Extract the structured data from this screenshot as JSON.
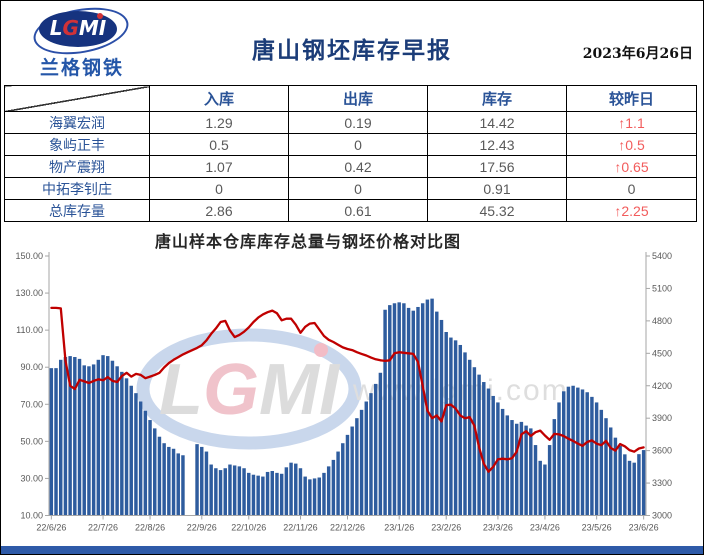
{
  "header": {
    "logo_text": "LGMI",
    "logo_subtext": "兰格钢铁",
    "title": "唐山钢坯库存早报",
    "date": "2023年6月26日"
  },
  "table": {
    "columns": [
      "入库",
      "出库",
      "库存",
      "较昨日"
    ],
    "rows": [
      {
        "name": "海翼宏润",
        "in": "1.29",
        "out": "0.19",
        "stock": "14.42",
        "change": "1.1",
        "up": true
      },
      {
        "name": "象屿正丰",
        "in": "0.5",
        "out": "0",
        "stock": "12.43",
        "change": "0.5",
        "up": true
      },
      {
        "name": "物产震翔",
        "in": "1.07",
        "out": "0.42",
        "stock": "17.56",
        "change": "0.65",
        "up": true
      },
      {
        "name": "中拓李钊庄",
        "in": "0",
        "out": "0",
        "stock": "0.91",
        "change": "0",
        "up": false
      },
      {
        "name": "总库存量",
        "in": "2.86",
        "out": "0.61",
        "stock": "45.32",
        "change": "2.25",
        "up": true
      }
    ],
    "up_arrow": "↑"
  },
  "chart_data": {
    "type": [
      "bar",
      "line"
    ],
    "title": "唐山样本仓库库存总量与钢坯价格对比图",
    "x_tick_labels": [
      "22/6/26",
      "22/7/26",
      "22/8/26",
      "22/9/26",
      "22/10/26",
      "22/11/26",
      "22/12/26",
      "23/1/26",
      "23/2/26",
      "23/3/26",
      "23/4/26",
      "23/5/26",
      "23/6/26"
    ],
    "left_axis": {
      "min": 10,
      "max": 150,
      "step": 20,
      "decimals": 2
    },
    "right_axis": {
      "min": 3000,
      "max": 5400,
      "step": 300,
      "decimals": 0
    },
    "grid": false,
    "legend": "none",
    "colors": {
      "bar": "#2e5c9e",
      "line": "#c00000",
      "axis": "#a6a6a6",
      "tick_text": "#595959"
    },
    "watermark": {
      "logo_text": "LGMI",
      "url_text": "www.lgmi.com"
    },
    "series": [
      {
        "name": "库存总量",
        "type": "bar",
        "axis": "left",
        "values": [
          89.5,
          89.5,
          94,
          95.5,
          96,
          95.5,
          94.5,
          91,
          90.5,
          91.5,
          94,
          96.5,
          96,
          93.5,
          90.5,
          87.5,
          84,
          80,
          76,
          71.5,
          66.5,
          61.5,
          57,
          52.5,
          49,
          47,
          46,
          43.5,
          42.5,
          null,
          null,
          48.5,
          47,
          44.5,
          37.5,
          35.5,
          34.5,
          35.5,
          37.5,
          37,
          36.5,
          35.5,
          33,
          32,
          31.5,
          31,
          33.5,
          34,
          33,
          32.5,
          36,
          38.5,
          38,
          35.5,
          31,
          29.5,
          30,
          30.5,
          33,
          36.5,
          40,
          44.5,
          49,
          53.5,
          58,
          62.5,
          67,
          71.5,
          76,
          81,
          87,
          121,
          123.5,
          124.5,
          125,
          124.5,
          122,
          120.5,
          122.5,
          124.5,
          126.5,
          127,
          120,
          115.5,
          109,
          106,
          104.5,
          102,
          98,
          94,
          90,
          86,
          82,
          78.5,
          74.5,
          71,
          67.5,
          64,
          61.5,
          59.5,
          60.5,
          58.5,
          57,
          48,
          39.5,
          37.5,
          48,
          62,
          71,
          77,
          79.5,
          80,
          79,
          78,
          76.5,
          74,
          71,
          67,
          62.5,
          57.5,
          52,
          47.5,
          43,
          39.5,
          38.5,
          43.1,
          45.3
        ]
      },
      {
        "name": "钢坯价格",
        "type": "line",
        "axis": "right",
        "values": [
          4920,
          4920,
          4915,
          4430,
          4200,
          4170,
          4255,
          4240,
          4225,
          4245,
          4260,
          4250,
          4280,
          4245,
          4235,
          4290,
          4320,
          4285,
          4310,
          4300,
          4270,
          4285,
          4300,
          4320,
          4370,
          4410,
          4440,
          4465,
          4490,
          4510,
          4530,
          4550,
          4575,
          4620,
          4680,
          4730,
          4790,
          4800,
          4710,
          4650,
          4670,
          4700,
          4740,
          4790,
          4830,
          4860,
          4880,
          4895,
          4870,
          4805,
          4820,
          4820,
          4765,
          4690,
          4745,
          4775,
          4780,
          4720,
          4660,
          4625,
          4605,
          4580,
          4555,
          4540,
          4530,
          4510,
          4495,
          4480,
          4460,
          4445,
          4435,
          4430,
          4435,
          4500,
          4510,
          4505,
          4500,
          4495,
          4420,
          4200,
          3970,
          3900,
          3925,
          3870,
          4020,
          4025,
          3990,
          3925,
          3900,
          3910,
          3830,
          3630,
          3480,
          3405,
          3450,
          3520,
          3525,
          3520,
          3530,
          3590,
          3750,
          3780,
          3735,
          3770,
          3785,
          3740,
          3700,
          3755,
          3750,
          3735,
          3710,
          3690,
          3665,
          3645,
          3680,
          3695,
          3665,
          3650,
          3690,
          3625,
          3600,
          3660,
          3640,
          3605,
          3590,
          3620,
          3630
        ]
      }
    ]
  }
}
